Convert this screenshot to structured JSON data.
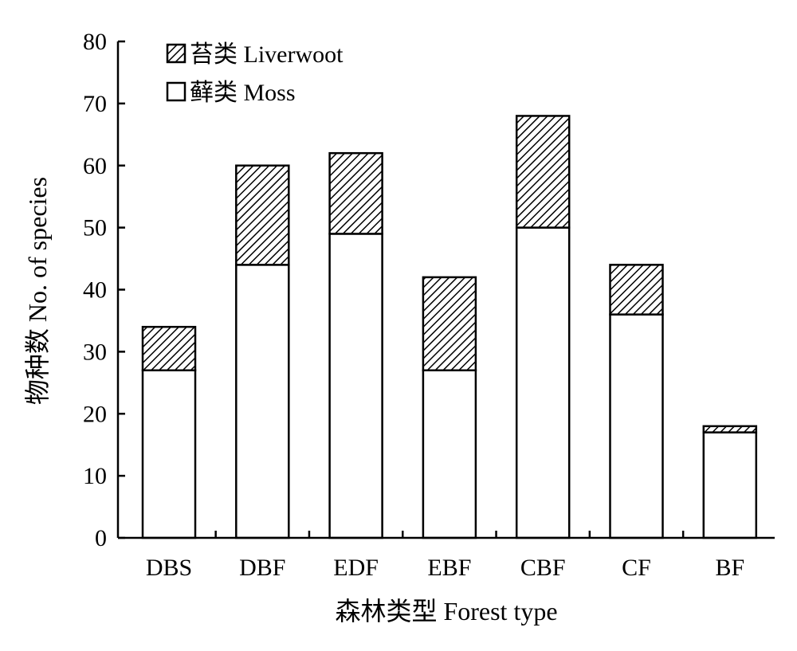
{
  "chart_data": {
    "type": "bar",
    "stacked": true,
    "categories": [
      "DBS",
      "DBF",
      "EDF",
      "EBF",
      "CBF",
      "CF",
      "BF"
    ],
    "series": [
      {
        "name": "藓类  Moss",
        "values": [
          27,
          44,
          49,
          27,
          50,
          36,
          17
        ],
        "fill": "#ffffff"
      },
      {
        "name": "苔类  Liverwoot",
        "values": [
          7,
          16,
          13,
          15,
          18,
          8,
          1
        ],
        "fill": "hatch"
      }
    ],
    "xlabel": "森林类型  Forest type",
    "ylabel": "物种数 No. of species",
    "ylim": [
      0,
      80
    ],
    "yticks": [
      "0",
      "10",
      "20",
      "30",
      "40",
      "50",
      "60",
      "70",
      "80"
    ],
    "grid": false,
    "legend_position": "top-left",
    "colors": {
      "outline": "#000000",
      "moss": "#ffffff",
      "hatch_line": "#000000"
    }
  }
}
